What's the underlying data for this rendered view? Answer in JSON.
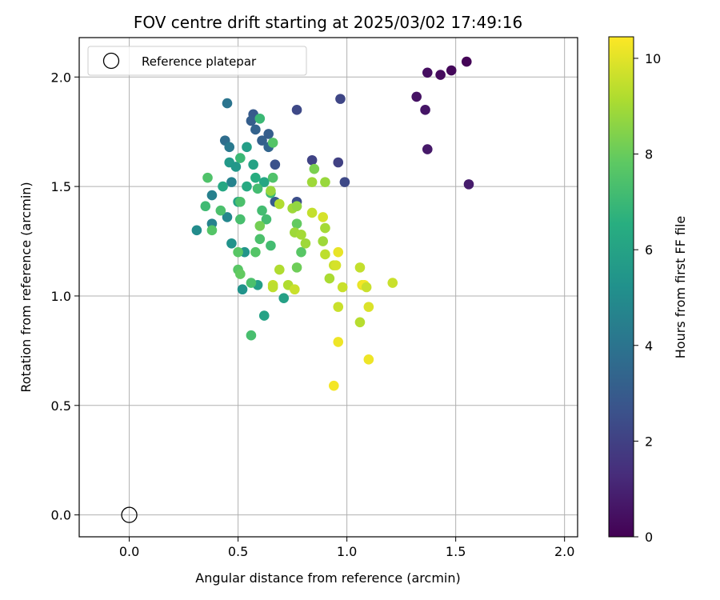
{
  "chart_data": {
    "type": "scatter",
    "title": "FOV centre drift starting at 2025/03/02 17:49:16",
    "xlabel": "Angular distance from reference (arcmin)",
    "ylabel": "Rotation from reference (arcmin)",
    "xlim": [
      -0.23,
      2.06
    ],
    "ylim": [
      -0.1,
      2.18
    ],
    "xticks": [
      "0.0",
      "0.5",
      "1.0",
      "1.5",
      "2.0"
    ],
    "yticks": [
      "0.0",
      "0.5",
      "1.0",
      "1.5",
      "2.0"
    ],
    "grid": true,
    "legend": {
      "placement": "top-left",
      "entries": [
        "Reference platepar"
      ]
    },
    "reference_point": {
      "x": 0.0,
      "y": 0.0
    },
    "colorbar": {
      "label": "Hours from first FF file",
      "range": [
        0,
        10.45
      ],
      "ticks": [
        "0",
        "2",
        "4",
        "6",
        "8",
        "10"
      ],
      "colormap": "viridis"
    },
    "points": [
      {
        "x": 1.55,
        "y": 2.07,
        "c": 0.1
      },
      {
        "x": 1.48,
        "y": 2.03,
        "c": 0.2
      },
      {
        "x": 1.43,
        "y": 2.01,
        "c": 0.3
      },
      {
        "x": 1.37,
        "y": 2.02,
        "c": 0.4
      },
      {
        "x": 1.32,
        "y": 1.91,
        "c": 0.5
      },
      {
        "x": 1.36,
        "y": 1.85,
        "c": 0.6
      },
      {
        "x": 1.37,
        "y": 1.67,
        "c": 0.7
      },
      {
        "x": 1.56,
        "y": 1.51,
        "c": 0.8
      },
      {
        "x": 0.97,
        "y": 1.9,
        "c": 2.2
      },
      {
        "x": 0.77,
        "y": 1.85,
        "c": 2.3
      },
      {
        "x": 0.84,
        "y": 1.62,
        "c": 2.1
      },
      {
        "x": 0.96,
        "y": 1.61,
        "c": 2.0
      },
      {
        "x": 0.99,
        "y": 1.52,
        "c": 2.3
      },
      {
        "x": 0.77,
        "y": 1.43,
        "c": 2.5
      },
      {
        "x": 0.67,
        "y": 1.6,
        "c": 2.6
      },
      {
        "x": 0.57,
        "y": 1.83,
        "c": 3.0
      },
      {
        "x": 0.56,
        "y": 1.8,
        "c": 3.1
      },
      {
        "x": 0.58,
        "y": 1.76,
        "c": 3.3
      },
      {
        "x": 0.61,
        "y": 1.71,
        "c": 3.2
      },
      {
        "x": 0.64,
        "y": 1.74,
        "c": 3.1
      },
      {
        "x": 0.64,
        "y": 1.68,
        "c": 3.4
      },
      {
        "x": 0.67,
        "y": 1.43,
        "c": 3.0
      },
      {
        "x": 0.44,
        "y": 1.71,
        "c": 3.7
      },
      {
        "x": 0.45,
        "y": 1.88,
        "c": 4.0
      },
      {
        "x": 0.46,
        "y": 1.68,
        "c": 4.2
      },
      {
        "x": 0.47,
        "y": 1.52,
        "c": 4.6
      },
      {
        "x": 0.38,
        "y": 1.46,
        "c": 4.5
      },
      {
        "x": 0.38,
        "y": 1.33,
        "c": 4.6
      },
      {
        "x": 0.45,
        "y": 1.36,
        "c": 4.8
      },
      {
        "x": 0.31,
        "y": 1.3,
        "c": 5.0
      },
      {
        "x": 0.47,
        "y": 1.24,
        "c": 5.3
      },
      {
        "x": 0.53,
        "y": 1.2,
        "c": 5.4
      },
      {
        "x": 0.52,
        "y": 1.03,
        "c": 5.3
      },
      {
        "x": 0.59,
        "y": 1.05,
        "c": 5.8
      },
      {
        "x": 0.71,
        "y": 0.99,
        "c": 5.9
      },
      {
        "x": 0.62,
        "y": 0.91,
        "c": 6.0
      },
      {
        "x": 0.46,
        "y": 1.61,
        "c": 5.6
      },
      {
        "x": 0.49,
        "y": 1.59,
        "c": 5.5
      },
      {
        "x": 0.54,
        "y": 1.68,
        "c": 5.8
      },
      {
        "x": 0.57,
        "y": 1.6,
        "c": 6.0
      },
      {
        "x": 0.62,
        "y": 1.52,
        "c": 6.2
      },
      {
        "x": 0.58,
        "y": 1.54,
        "c": 6.5
      },
      {
        "x": 0.54,
        "y": 1.5,
        "c": 6.3
      },
      {
        "x": 0.43,
        "y": 1.5,
        "c": 6.2
      },
      {
        "x": 0.5,
        "y": 1.43,
        "c": 6.0
      },
      {
        "x": 0.6,
        "y": 1.81,
        "c": 7.0
      },
      {
        "x": 0.66,
        "y": 1.7,
        "c": 7.6
      },
      {
        "x": 0.51,
        "y": 1.63,
        "c": 7.0
      },
      {
        "x": 0.66,
        "y": 1.54,
        "c": 7.5
      },
      {
        "x": 0.59,
        "y": 1.49,
        "c": 7.2
      },
      {
        "x": 0.65,
        "y": 1.47,
        "c": 7.0
      },
      {
        "x": 0.51,
        "y": 1.43,
        "c": 7.4
      },
      {
        "x": 0.36,
        "y": 1.54,
        "c": 7.5
      },
      {
        "x": 0.35,
        "y": 1.41,
        "c": 7.1
      },
      {
        "x": 0.42,
        "y": 1.39,
        "c": 7.4
      },
      {
        "x": 0.51,
        "y": 1.35,
        "c": 7.3
      },
      {
        "x": 0.61,
        "y": 1.39,
        "c": 7.2
      },
      {
        "x": 0.63,
        "y": 1.35,
        "c": 7.2
      },
      {
        "x": 0.38,
        "y": 1.3,
        "c": 7.6
      },
      {
        "x": 0.6,
        "y": 1.26,
        "c": 7.4
      },
      {
        "x": 0.65,
        "y": 1.23,
        "c": 7.2
      },
      {
        "x": 0.58,
        "y": 1.2,
        "c": 7.6
      },
      {
        "x": 0.5,
        "y": 1.2,
        "c": 7.7
      },
      {
        "x": 0.5,
        "y": 1.12,
        "c": 7.7
      },
      {
        "x": 0.51,
        "y": 1.1,
        "c": 7.9
      },
      {
        "x": 0.56,
        "y": 1.06,
        "c": 7.4
      },
      {
        "x": 0.56,
        "y": 0.82,
        "c": 7.3
      },
      {
        "x": 0.6,
        "y": 1.32,
        "c": 8.2
      },
      {
        "x": 0.77,
        "y": 1.33,
        "c": 7.9
      },
      {
        "x": 0.79,
        "y": 1.2,
        "c": 7.7
      },
      {
        "x": 0.77,
        "y": 1.13,
        "c": 8.1
      },
      {
        "x": 0.85,
        "y": 1.58,
        "c": 8.3
      },
      {
        "x": 0.84,
        "y": 1.52,
        "c": 8.9
      },
      {
        "x": 0.9,
        "y": 1.52,
        "c": 8.8
      },
      {
        "x": 0.65,
        "y": 1.48,
        "c": 8.8
      },
      {
        "x": 0.69,
        "y": 1.42,
        "c": 9.2
      },
      {
        "x": 0.75,
        "y": 1.4,
        "c": 8.9
      },
      {
        "x": 0.77,
        "y": 1.41,
        "c": 8.7
      },
      {
        "x": 0.76,
        "y": 1.29,
        "c": 8.9
      },
      {
        "x": 0.79,
        "y": 1.28,
        "c": 9.0
      },
      {
        "x": 0.81,
        "y": 1.24,
        "c": 8.9
      },
      {
        "x": 0.89,
        "y": 1.25,
        "c": 8.9
      },
      {
        "x": 0.9,
        "y": 1.31,
        "c": 9.0
      },
      {
        "x": 0.84,
        "y": 1.38,
        "c": 9.5
      },
      {
        "x": 0.89,
        "y": 1.36,
        "c": 9.8
      },
      {
        "x": 0.9,
        "y": 1.19,
        "c": 9.4
      },
      {
        "x": 0.94,
        "y": 1.14,
        "c": 9.6
      },
      {
        "x": 0.95,
        "y": 1.14,
        "c": 9.8
      },
      {
        "x": 0.96,
        "y": 1.2,
        "c": 10.1
      },
      {
        "x": 0.92,
        "y": 1.08,
        "c": 9.1
      },
      {
        "x": 0.98,
        "y": 1.04,
        "c": 9.6
      },
      {
        "x": 0.69,
        "y": 1.12,
        "c": 9.2
      },
      {
        "x": 0.66,
        "y": 1.05,
        "c": 9.5
      },
      {
        "x": 0.73,
        "y": 1.05,
        "c": 9.2
      },
      {
        "x": 0.76,
        "y": 1.03,
        "c": 9.6
      },
      {
        "x": 0.66,
        "y": 1.04,
        "c": 9.4
      },
      {
        "x": 0.96,
        "y": 0.95,
        "c": 9.6
      },
      {
        "x": 0.96,
        "y": 0.79,
        "c": 10.2
      },
      {
        "x": 0.94,
        "y": 0.59,
        "c": 10.3
      },
      {
        "x": 1.06,
        "y": 1.13,
        "c": 9.5
      },
      {
        "x": 1.07,
        "y": 1.05,
        "c": 10.1
      },
      {
        "x": 1.08,
        "y": 1.05,
        "c": 10.3
      },
      {
        "x": 1.09,
        "y": 1.04,
        "c": 9.6
      },
      {
        "x": 1.1,
        "y": 0.95,
        "c": 9.9
      },
      {
        "x": 1.06,
        "y": 0.88,
        "c": 9.3
      },
      {
        "x": 1.1,
        "y": 0.71,
        "c": 10.2
      },
      {
        "x": 1.21,
        "y": 1.06,
        "c": 9.6
      }
    ]
  }
}
